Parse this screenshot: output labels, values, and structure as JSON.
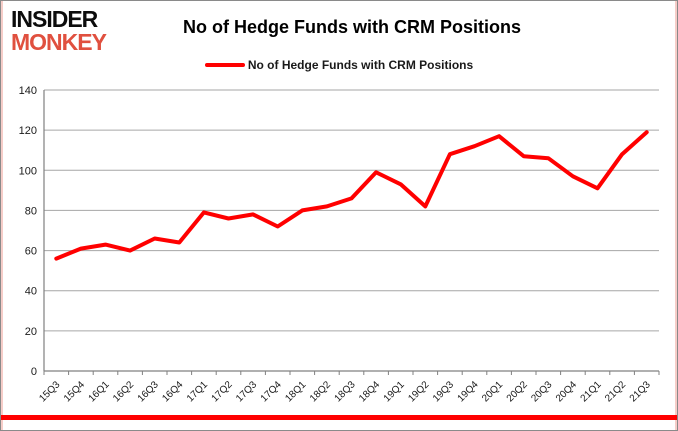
{
  "logo": {
    "line1": "INSIDER",
    "line2": "MONKEY",
    "line1_color": "#0c0c0c",
    "line2_color": "#e0503f"
  },
  "title": "No of Hedge Funds with CRM Positions",
  "legend": {
    "label": "No of Hedge Funds with CRM Positions",
    "line_color": "#ff0000"
  },
  "chart_data": {
    "type": "line",
    "title": "No of Hedge Funds with CRM Positions",
    "categories": [
      "15Q3",
      "15Q4",
      "16Q1",
      "16Q2",
      "16Q3",
      "16Q4",
      "17Q1",
      "17Q2",
      "17Q3",
      "17Q4",
      "18Q1",
      "18Q2",
      "18Q3",
      "18Q4",
      "19Q1",
      "19Q2",
      "19Q3",
      "19Q4",
      "20Q1",
      "20Q2",
      "20Q3",
      "20Q4",
      "21Q1",
      "21Q2",
      "21Q3"
    ],
    "series": [
      {
        "name": "No of Hedge Funds with CRM Positions",
        "color": "#ff0000",
        "values": [
          56,
          61,
          63,
          60,
          66,
          64,
          79,
          76,
          78,
          72,
          80,
          82,
          86,
          99,
          93,
          82,
          108,
          112,
          117,
          107,
          106,
          97,
          91,
          108,
          119
        ]
      }
    ],
    "xlabel": "",
    "ylabel": "",
    "ylim": [
      0,
      140
    ],
    "ytick_interval": 20,
    "grid": true,
    "legend_position": "top",
    "gridline_color": "#a6a6a6",
    "axis_color": "#808080",
    "tick_label_color": "#1a1a1a"
  },
  "decor": {
    "bottom_bar_color": "#ff0000"
  }
}
